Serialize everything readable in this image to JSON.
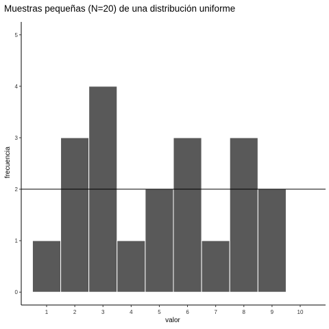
{
  "chart_data": {
    "type": "bar",
    "title": "Muestras pequeñas (N=20) de una distribución uniforme",
    "xlabel": "valor",
    "ylabel": "frecuencia",
    "categories": [
      1,
      2,
      3,
      4,
      5,
      6,
      7,
      8,
      9
    ],
    "values": [
      1,
      3,
      4,
      1,
      2,
      3,
      1,
      3,
      2
    ],
    "x_ticks": [
      "1",
      "2",
      "3",
      "4",
      "5",
      "6",
      "7",
      "8",
      "9",
      "10"
    ],
    "y_ticks": [
      "0",
      "1",
      "2",
      "3",
      "4",
      "5"
    ],
    "xlim": [
      0.1,
      10.9
    ],
    "ylim": [
      -0.25,
      5.25
    ],
    "reference_line": {
      "y": 2,
      "color": "#000000"
    },
    "bar_color": "#595959",
    "bar_border_color": "#ffffff",
    "grid": false,
    "legend": "none"
  }
}
